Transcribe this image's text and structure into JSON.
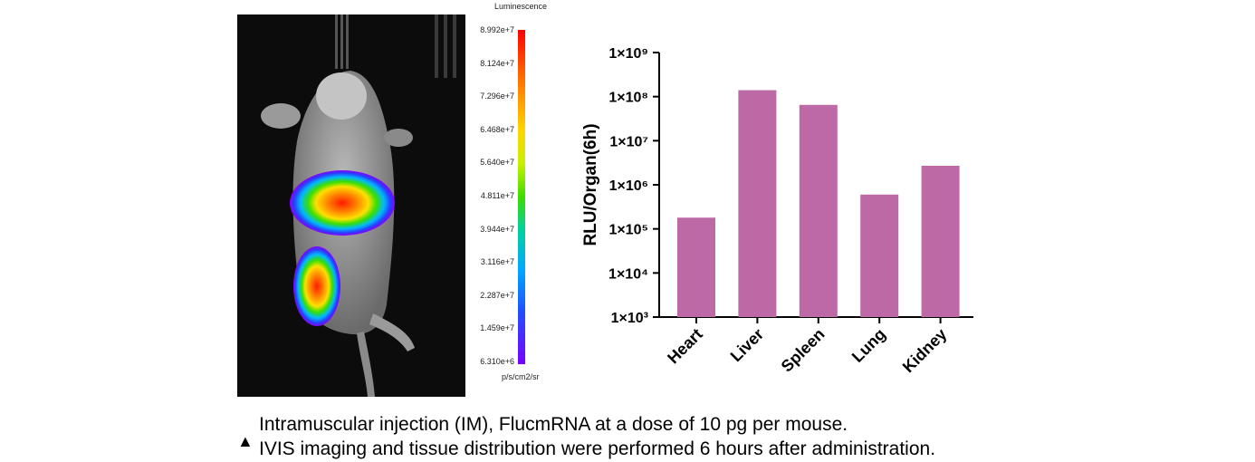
{
  "ivis_panel": {
    "legend_title": "Luminescence",
    "legend_unit": "p/s/cm2/sr",
    "scale_ticks": [
      "8.992e+7",
      "8.124e+7",
      "7.296e+7",
      "6.468e+7",
      "5.640e+7",
      "4.811e+7",
      "3.944e+7",
      "3.116e+7",
      "2.287e+7",
      "1.459e+7",
      "6.310e+6"
    ]
  },
  "chart_data": {
    "type": "bar",
    "categories": [
      "Heart",
      "Liver",
      "Spleen",
      "Lung",
      "Kidney"
    ],
    "values": [
      180000,
      140000000,
      65000000,
      600000,
      2700000
    ],
    "ylabel": "RLU/Organ(6h)",
    "yscale": "log",
    "ylim": [
      1000,
      1000000000
    ],
    "yticks": [
      "1×10³",
      "1×10⁴",
      "1×10⁵",
      "1×10⁶",
      "1×10⁷",
      "1×10⁸",
      "1×10⁹"
    ],
    "bar_color": "#bd69a6",
    "grid": false
  },
  "caption": {
    "icon": "triangle-up-icon",
    "line1": "Intramuscular injection (IM), FlucmRNA at a dose of 10 pg per mouse.",
    "line2": "IVIS imaging and tissue distribution were performed 6 hours after administration."
  }
}
